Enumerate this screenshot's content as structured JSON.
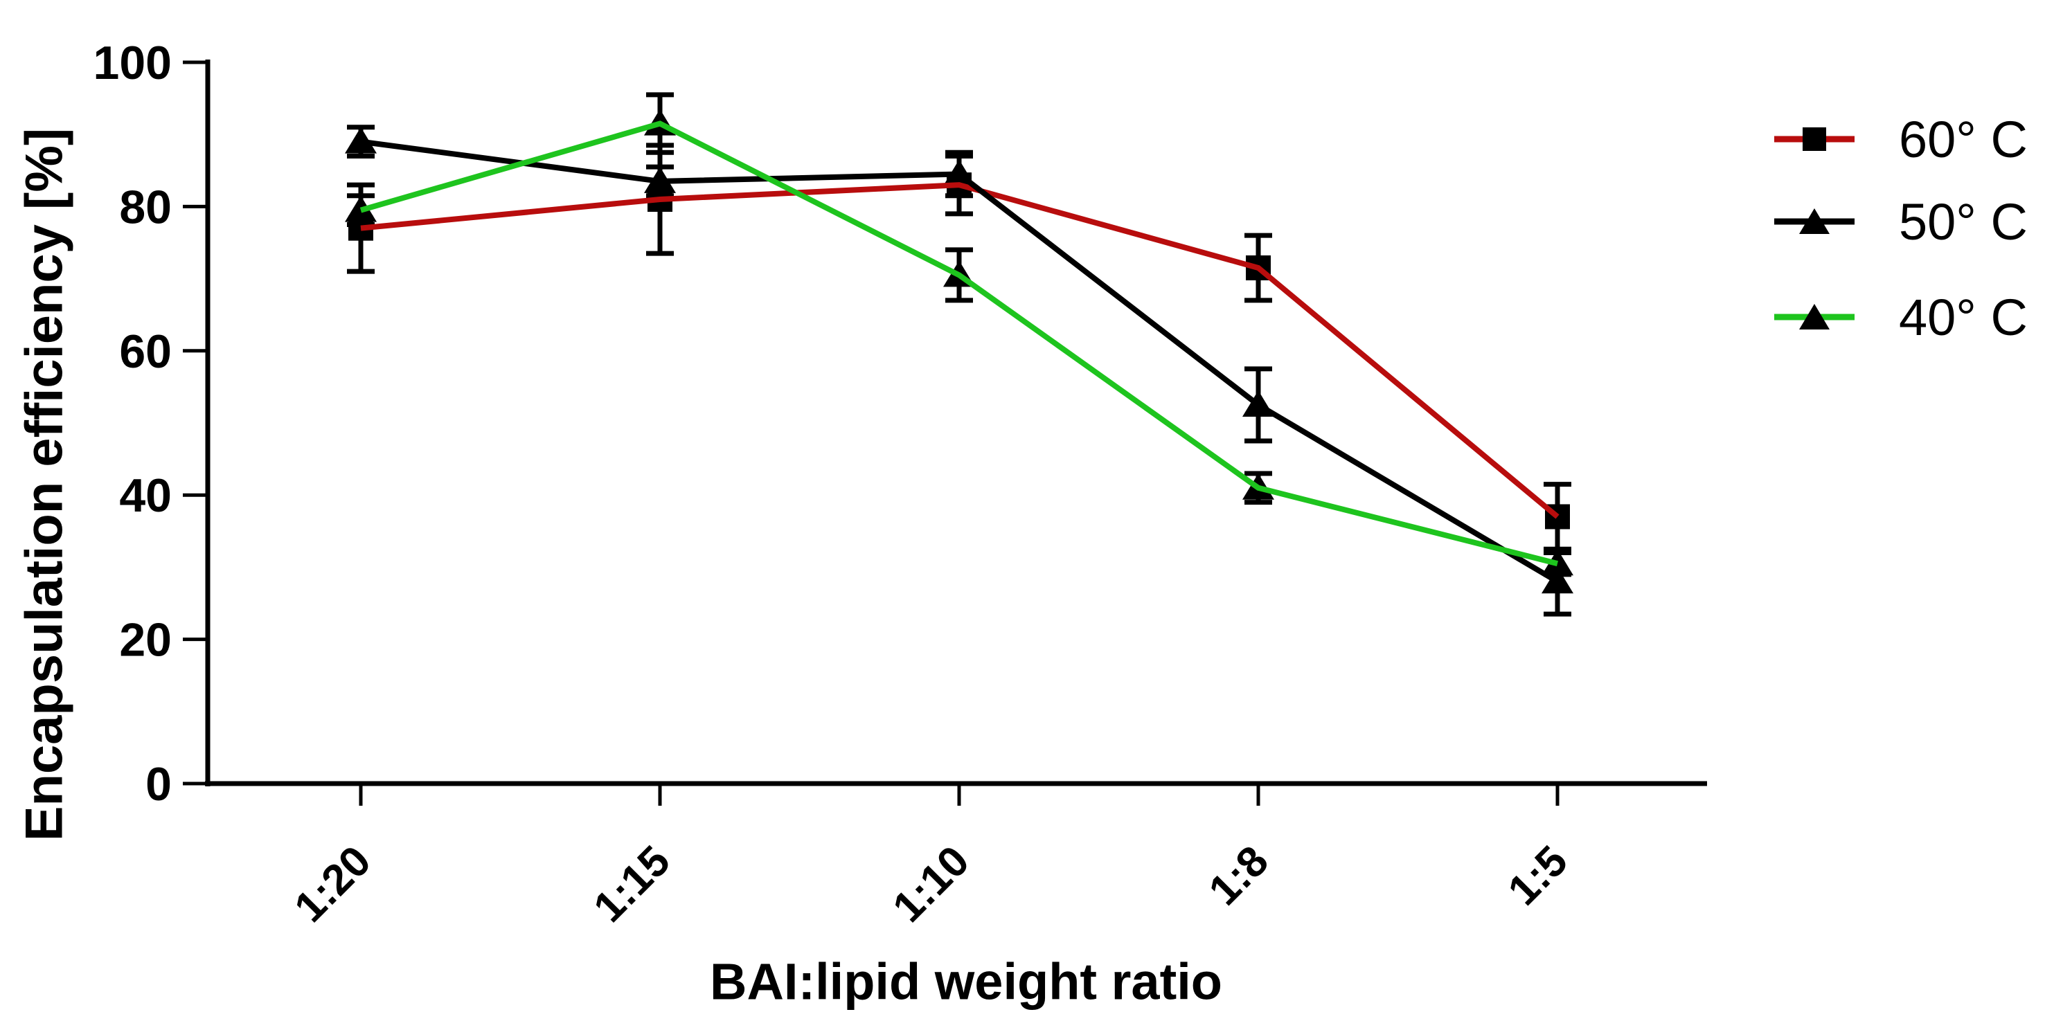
{
  "chart_data": {
    "type": "line",
    "title": "",
    "xlabel": "BAI:lipid weight ratio",
    "ylabel": "Encapsulation efficiency [%]",
    "categories": [
      "1:20",
      "1:15",
      "1:10",
      "1:8",
      "1:5"
    ],
    "y_ticks": [
      0,
      20,
      40,
      60,
      80,
      100
    ],
    "ylim": [
      0,
      100
    ],
    "grid": false,
    "legend_position": "right-outside",
    "background_color": "#ffffff",
    "axis_color": "#000000",
    "marker_color": "#000000",
    "error_bar_color": "#000000",
    "series": [
      {
        "name": "60° C",
        "line_color": "#b80d0d",
        "marker": "square",
        "values": [
          77,
          81,
          83,
          71.5,
          37
        ],
        "errors": [
          6,
          7.5,
          4,
          4.5,
          4.5
        ]
      },
      {
        "name": "50° C",
        "line_color": "#000000",
        "marker": "triangle",
        "values": [
          89,
          83.5,
          84.5,
          52.5,
          28
        ],
        "errors": [
          2,
          2,
          3,
          5,
          4.5
        ]
      },
      {
        "name": "40° C",
        "line_color": "#1ec41e",
        "marker": "triangle",
        "values": [
          79.5,
          91.5,
          70.5,
          41,
          30.5
        ],
        "errors": [
          2,
          4,
          3.5,
          2,
          1.5
        ]
      }
    ]
  }
}
